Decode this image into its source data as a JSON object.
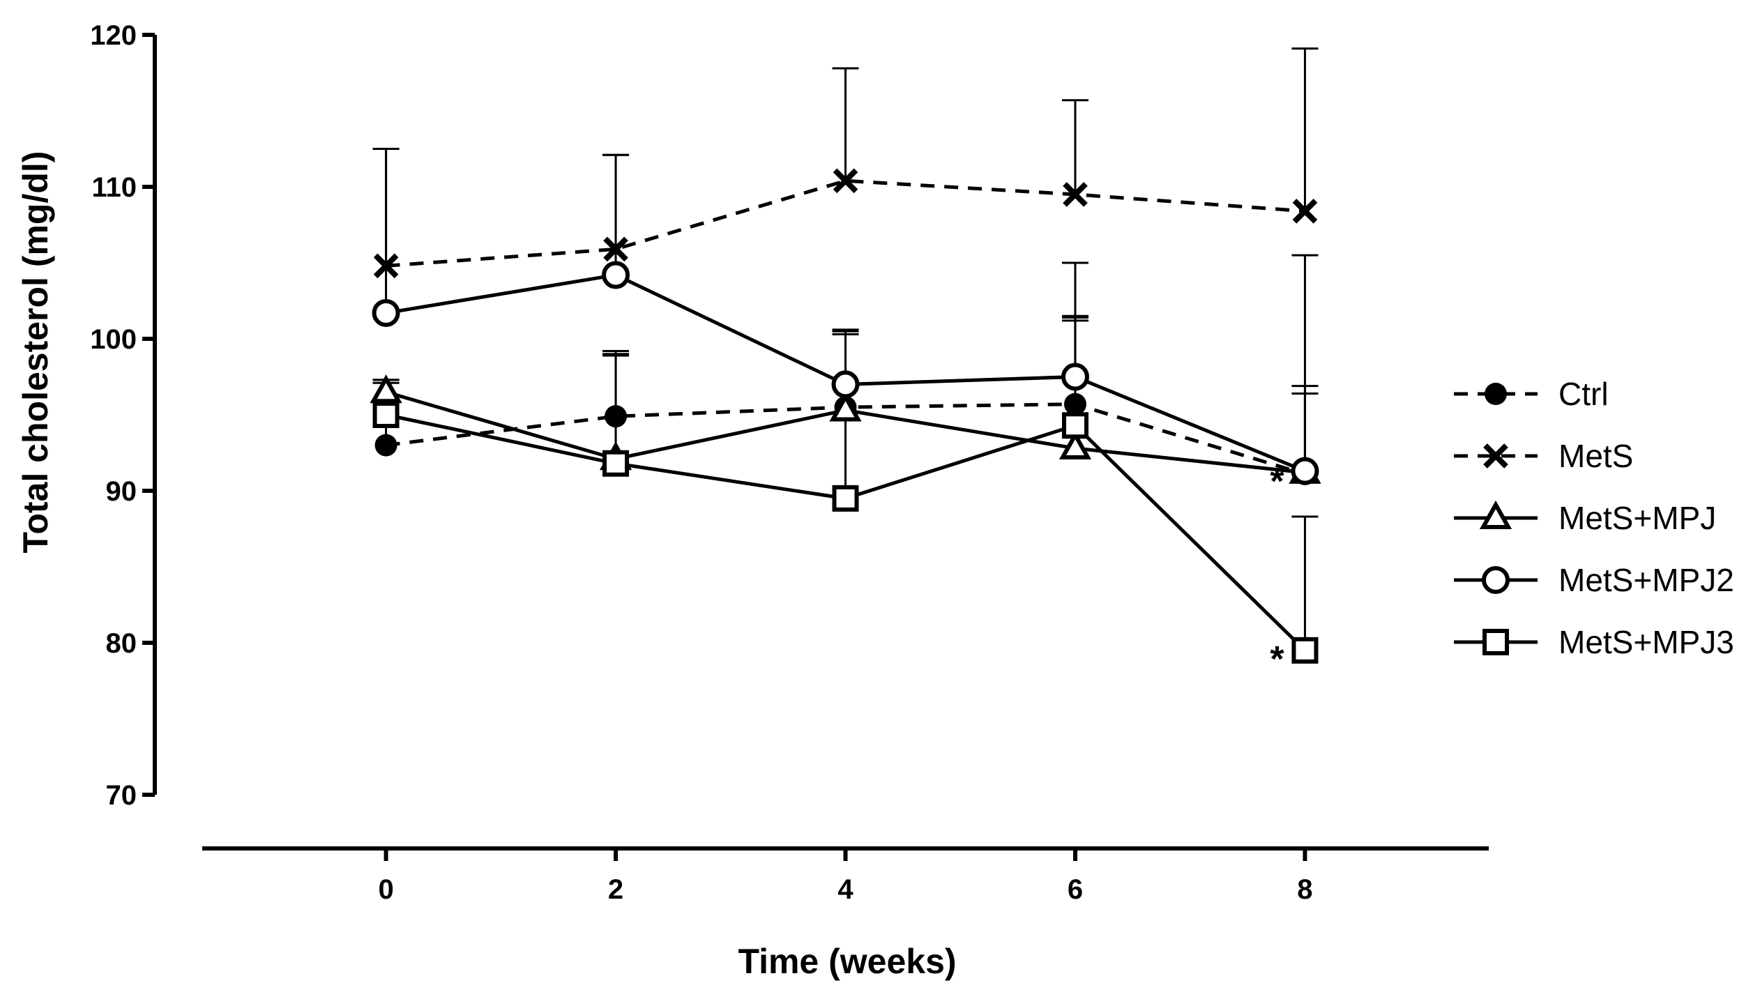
{
  "chart_data": {
    "type": "line",
    "xlabel": "Time (weeks)",
    "ylabel": "Total cholesterol (mg/dl)",
    "x": [
      0,
      2,
      4,
      6,
      8
    ],
    "x_ticks": [
      "0",
      "2",
      "4",
      "6",
      "8"
    ],
    "xlim": [
      -1.6,
      9.6
    ],
    "ylim": [
      70,
      120
    ],
    "y_ticks": [
      "70",
      "80",
      "90",
      "100",
      "110",
      "120"
    ],
    "grid": false,
    "legend_position": "right",
    "series": [
      {
        "name": "Ctrl",
        "marker": "filled-circle",
        "line": "dashed",
        "values": [
          93.0,
          94.9,
          95.5,
          95.7,
          91.1
        ],
        "error": [
          4.3,
          4.3,
          5.0,
          5.5,
          5.8
        ]
      },
      {
        "name": "MetS",
        "marker": "x",
        "line": "dashed",
        "values": [
          104.8,
          105.9,
          110.4,
          109.5,
          108.4
        ],
        "error": [
          7.7,
          6.2,
          7.4,
          6.2,
          10.7
        ]
      },
      {
        "name": "MetS+MPJ",
        "marker": "open-triangle",
        "line": "solid",
        "values": [
          96.5,
          92.1,
          95.3,
          92.8,
          91.2
        ],
        "error": [
          0.8,
          6.9,
          5.2,
          8.7,
          5.2
        ]
      },
      {
        "name": "MetS+MPJ2",
        "marker": "open-circle",
        "line": "solid",
        "values": [
          101.7,
          104.2,
          97.0,
          97.5,
          91.3
        ],
        "error": [
          10.8,
          7.9,
          3.6,
          7.5,
          14.2
        ]
      },
      {
        "name": "MetS+MPJ3",
        "marker": "open-square",
        "line": "solid",
        "values": [
          95.0,
          91.8,
          89.5,
          94.3,
          79.5
        ],
        "error": [
          2.1,
          7.1,
          10.8,
          7.1,
          8.8
        ]
      }
    ],
    "annotations": [
      {
        "text": "*",
        "x": 8,
        "y": 91.2
      },
      {
        "text": "*",
        "x": 8,
        "y": 79.5
      }
    ]
  }
}
